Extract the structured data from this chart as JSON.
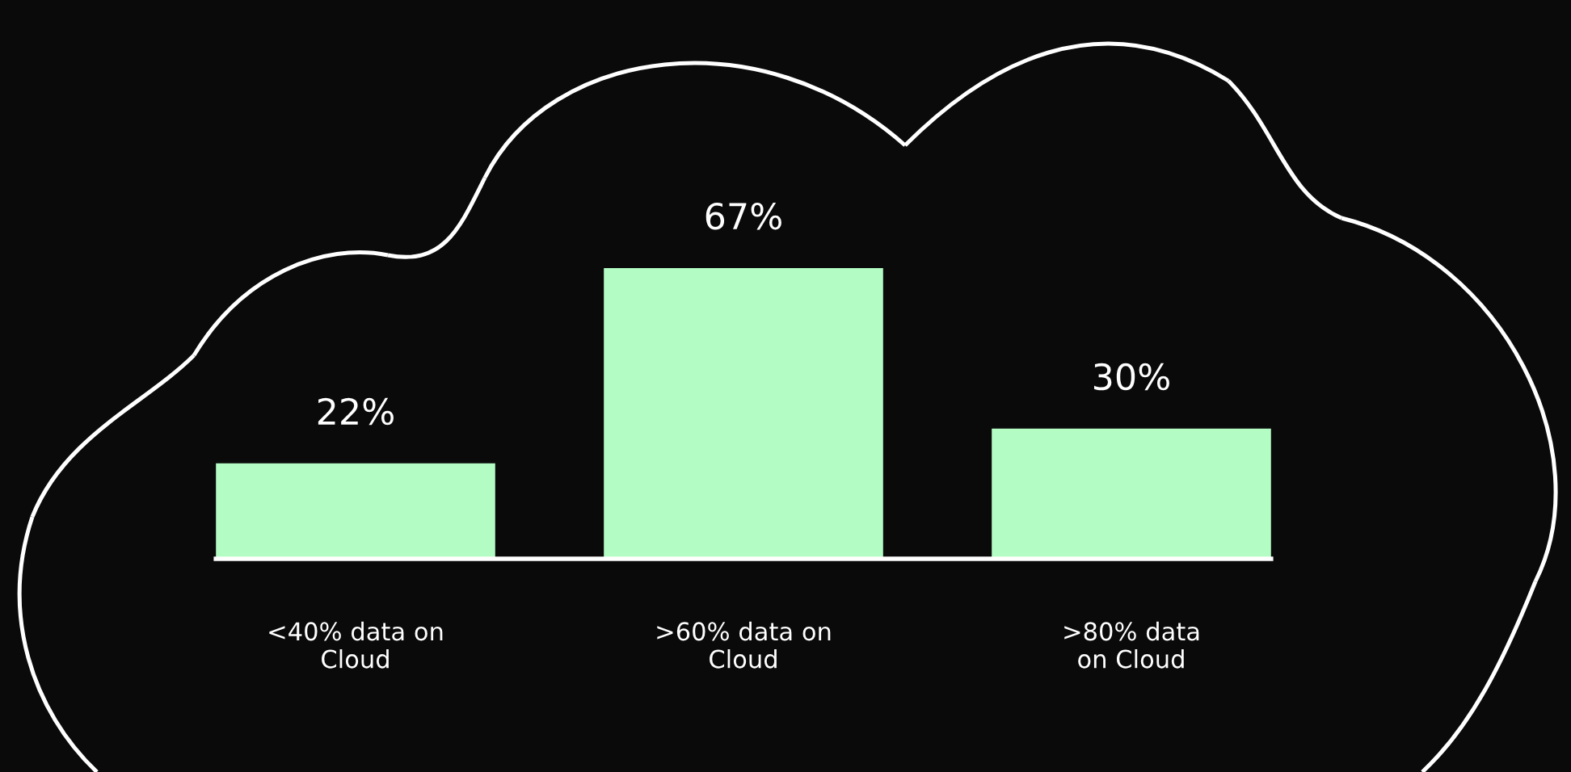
{
  "chart_data": {
    "type": "bar",
    "categories": [
      "<40% data on\nCloud",
      ">60% data on\nCloud",
      ">80% data\non Cloud"
    ],
    "values": [
      22,
      67,
      30
    ],
    "value_labels": [
      "22%",
      "67%",
      "30%"
    ],
    "color": "#b3fcc4",
    "grid": false,
    "legend": false
  }
}
